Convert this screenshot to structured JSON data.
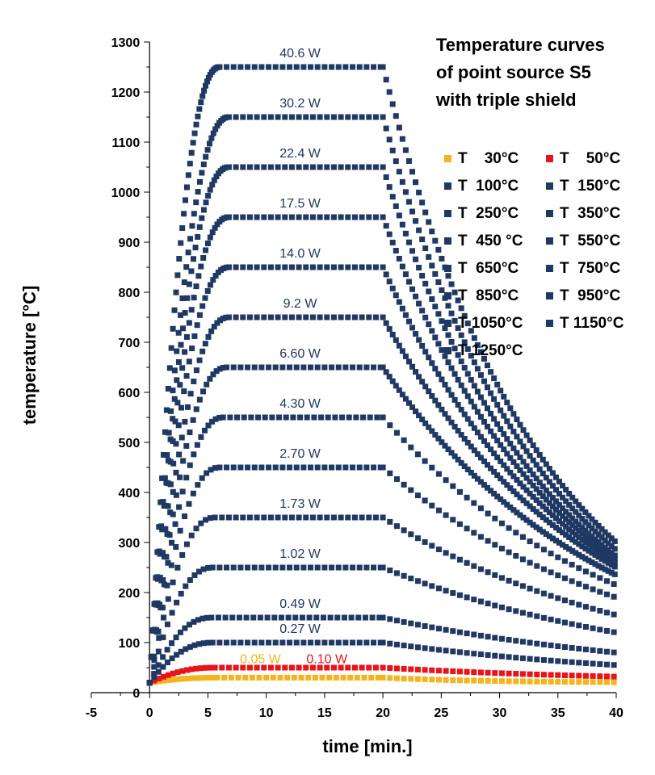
{
  "colors": {
    "navy": "#1f3864",
    "orange": "#f4b41a",
    "red": "#e8141a",
    "axis": "#000000"
  },
  "chart_data": {
    "type": "scatter",
    "title": [
      "Temperature curves",
      "of point source S5",
      "with triple shield"
    ],
    "xlabel": "time [min.]",
    "ylabel": "temperature [°C]",
    "xlim": [
      -5,
      40
    ],
    "ylim": [
      0,
      1300
    ],
    "xticks": [
      -5,
      0,
      5,
      10,
      15,
      20,
      25,
      30,
      35,
      40
    ],
    "yticks": [
      0,
      100,
      200,
      300,
      400,
      500,
      600,
      700,
      800,
      900,
      1000,
      1100,
      1200,
      1300
    ],
    "heating_end_min": 20,
    "series": [
      {
        "name": "T    30°C",
        "target": 30,
        "power": "0.05 W",
        "color": "orange",
        "rise_min": 5.8,
        "end_value": 20
      },
      {
        "name": "T    50°C",
        "target": 50,
        "power": "0.10 W",
        "color": "red",
        "rise_min": 5.6,
        "end_value": 32
      },
      {
        "name": "T  100°C",
        "target": 100,
        "power": "0.27 W",
        "color": "navy",
        "rise_min": 5.4,
        "end_value": 55
      },
      {
        "name": "T  150°C",
        "target": 150,
        "power": "0.49 W",
        "color": "navy",
        "rise_min": 5.3,
        "end_value": 80
      },
      {
        "name": "T  250°C",
        "target": 250,
        "power": "1.02 W",
        "color": "navy",
        "rise_min": 5.4,
        "end_value": 120
      },
      {
        "name": "T  350°C",
        "target": 350,
        "power": "1.73 W",
        "color": "navy",
        "rise_min": 5.6,
        "end_value": 155
      },
      {
        "name": "T  450 °C",
        "target": 450,
        "power": "2.70 W",
        "color": "navy",
        "rise_min": 6.0,
        "end_value": 190
      },
      {
        "name": "T  550°C",
        "target": 550,
        "power": "4.30 W",
        "color": "navy",
        "rise_min": 6.3,
        "end_value": 215
      },
      {
        "name": "T  650°C",
        "target": 650,
        "power": "6.60 W",
        "color": "navy",
        "rise_min": 6.6,
        "end_value": 235
      },
      {
        "name": "T  750°C",
        "target": 750,
        "power": "9.2 W",
        "color": "navy",
        "rise_min": 6.8,
        "end_value": 250
      },
      {
        "name": "T  850°C",
        "target": 850,
        "power": "14.0 W",
        "color": "navy",
        "rise_min": 6.8,
        "end_value": 258
      },
      {
        "name": "T  950°C",
        "target": 950,
        "power": "17.5 W",
        "color": "navy",
        "rise_min": 6.8,
        "end_value": 265
      },
      {
        "name": "T 1050°C",
        "target": 1050,
        "power": "22.4 W",
        "color": "navy",
        "rise_min": 6.8,
        "end_value": 272
      },
      {
        "name": "T 1150°C",
        "target": 1150,
        "power": "30.2 W",
        "color": "navy",
        "rise_min": 6.8,
        "end_value": 285
      },
      {
        "name": "T 1250°C",
        "target": 1250,
        "power": "40.6 W",
        "color": "navy",
        "rise_min": 6.0,
        "end_value": 300
      }
    ]
  }
}
